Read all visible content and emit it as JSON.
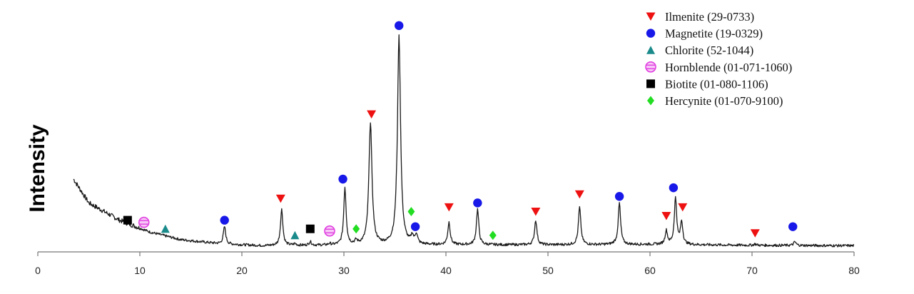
{
  "chart_data": {
    "type": "line",
    "title": "",
    "xlabel": "",
    "ylabel": "Intensity",
    "xlim": [
      0,
      80
    ],
    "ylim": [
      0,
      100
    ],
    "x_ticks": [
      0,
      10,
      20,
      30,
      40,
      50,
      60,
      70,
      80
    ],
    "y_ticks": [],
    "grid": false,
    "legend_position": "top-right",
    "series": [
      {
        "type": "line",
        "color": "#1a1a1a",
        "x_range": [
          3.5,
          80
        ],
        "baseline": [
          [
            3.5,
            33
          ],
          [
            5,
            22
          ],
          [
            8,
            14
          ],
          [
            11,
            8.5
          ],
          [
            14,
            5
          ],
          [
            18,
            3
          ],
          [
            22,
            2.2
          ],
          [
            30,
            2.4
          ],
          [
            40,
            2.6
          ],
          [
            50,
            2.6
          ],
          [
            60,
            2.8
          ],
          [
            70,
            2.4
          ],
          [
            80,
            2.2
          ]
        ],
        "peaks": [
          {
            "x": 10.5,
            "y": 7
          },
          {
            "x": 12.4,
            "y": 4
          },
          {
            "x": 18.3,
            "y": 11
          },
          {
            "x": 23.9,
            "y": 19
          },
          {
            "x": 25.2,
            "y": 3
          },
          {
            "x": 26.7,
            "y": 4
          },
          {
            "x": 28.6,
            "y": 3
          },
          {
            "x": 30.1,
            "y": 29
          },
          {
            "x": 31.2,
            "y": 4
          },
          {
            "x": 32.6,
            "y": 59
          },
          {
            "x": 35.4,
            "y": 99
          },
          {
            "x": 36.7,
            "y": 6
          },
          {
            "x": 37.1,
            "y": 7
          },
          {
            "x": 40.3,
            "y": 13
          },
          {
            "x": 43.1,
            "y": 19
          },
          {
            "x": 44.6,
            "y": 2
          },
          {
            "x": 48.8,
            "y": 14
          },
          {
            "x": 53.1,
            "y": 20
          },
          {
            "x": 56.5,
            "y": 3
          },
          {
            "x": 57.0,
            "y": 22
          },
          {
            "x": 61.6,
            "y": 9
          },
          {
            "x": 62.5,
            "y": 24
          },
          {
            "x": 63.1,
            "y": 13
          },
          {
            "x": 64.9,
            "y": 2
          },
          {
            "x": 70.3,
            "y": 3
          },
          {
            "x": 74.2,
            "y": 4
          },
          {
            "x": 78.9,
            "y": 2
          }
        ]
      }
    ],
    "markers": [
      {
        "phase": "Biotite",
        "x": 8.8,
        "y": 14
      },
      {
        "phase": "Hornblende",
        "x": 10.4,
        "y": 13
      },
      {
        "phase": "Chlorite",
        "x": 12.5,
        "y": 10
      },
      {
        "phase": "Magnetite",
        "x": 18.3,
        "y": 14
      },
      {
        "phase": "Ilmenite",
        "x": 23.8,
        "y": 24
      },
      {
        "phase": "Chlorite",
        "x": 25.2,
        "y": 7
      },
      {
        "phase": "Biotite",
        "x": 26.7,
        "y": 10
      },
      {
        "phase": "Hornblende",
        "x": 28.6,
        "y": 9
      },
      {
        "phase": "Magnetite",
        "x": 29.9,
        "y": 33
      },
      {
        "phase": "Hercynite",
        "x": 31.2,
        "y": 10
      },
      {
        "phase": "Ilmenite",
        "x": 32.7,
        "y": 63
      },
      {
        "phase": "Magnetite",
        "x": 35.4,
        "y": 104
      },
      {
        "phase": "Hercynite",
        "x": 36.6,
        "y": 18
      },
      {
        "phase": "Magnetite",
        "x": 37.0,
        "y": 11
      },
      {
        "phase": "Ilmenite",
        "x": 40.3,
        "y": 20
      },
      {
        "phase": "Magnetite",
        "x": 43.1,
        "y": 22
      },
      {
        "phase": "Hercynite",
        "x": 44.6,
        "y": 7
      },
      {
        "phase": "Ilmenite",
        "x": 48.8,
        "y": 18
      },
      {
        "phase": "Ilmenite",
        "x": 53.1,
        "y": 26
      },
      {
        "phase": "Magnetite",
        "x": 57.0,
        "y": 25
      },
      {
        "phase": "Ilmenite",
        "x": 61.6,
        "y": 16
      },
      {
        "phase": "Magnetite",
        "x": 62.3,
        "y": 29
      },
      {
        "phase": "Ilmenite",
        "x": 63.2,
        "y": 20
      },
      {
        "phase": "Ilmenite",
        "x": 70.3,
        "y": 8
      },
      {
        "phase": "Magnetite",
        "x": 74.0,
        "y": 11
      }
    ],
    "legend": [
      {
        "phase": "Ilmenite",
        "label": "Ilmenite (29-0733)",
        "shape": "triangle-down",
        "color": "#ee1111"
      },
      {
        "phase": "Magnetite",
        "label": "Magnetite (19-0329)",
        "shape": "circle",
        "color": "#1818e8"
      },
      {
        "phase": "Chlorite",
        "label": "Chlorite (52-1044)",
        "shape": "triangle-up",
        "color": "#1a8a8a"
      },
      {
        "phase": "Hornblende",
        "label": "Hornblende (01-071-1060)",
        "shape": "hatched-circle",
        "color": "#e040e0"
      },
      {
        "phase": "Biotite",
        "label": "Biotite (01-080-1106)",
        "shape": "square",
        "color": "#000000"
      },
      {
        "phase": "Hercynite",
        "label": "Hercynite (01-070-9100)",
        "shape": "diamond",
        "color": "#22dd22"
      }
    ]
  }
}
